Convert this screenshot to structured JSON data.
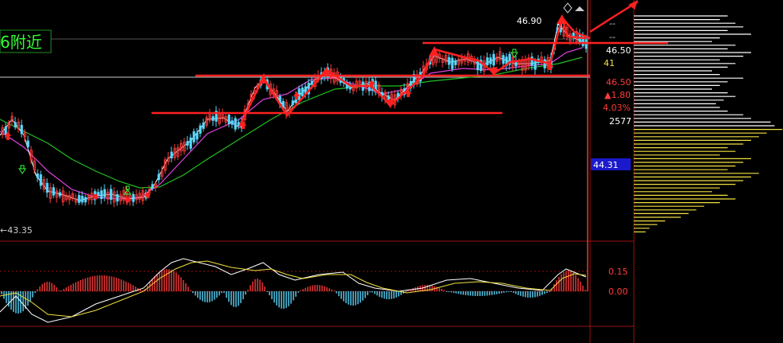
{
  "banner": {
    "text": "6附近",
    "color": "#33ff33"
  },
  "price_axis": {
    "high": "46.90",
    "dash1": "--",
    "dash2": "--",
    "current": "46.50",
    "volume_small": "41",
    "last": "46.50",
    "change": "▲1.80",
    "change_pct": "4.03%",
    "volume": "2577",
    "cursor_price": "44.31",
    "low_marker": "←43.35"
  },
  "macd_axis": {
    "upper": "0.15",
    "zero": "0.00"
  },
  "colors": {
    "up": "#ff3b3b",
    "down": "#5ad8ff",
    "ma_short": "#ffffff",
    "ma_mid": "#e040e0",
    "ma_long": "#20c020",
    "annotation": "#ff2020",
    "grid": "#9a1010",
    "volume_profile_top": "#ffffff",
    "volume_profile_bottom": "#f0e040",
    "cursor_box": "#1a1acc"
  },
  "chart_data": {
    "type": "candlestick",
    "price_min": 43.35,
    "price_max": 46.9,
    "macd_ticks": [
      0.15,
      0.0
    ],
    "support_resistance_levels": [
      "horizontal lines drawn at several price levels"
    ],
    "indicators": [
      "MA short",
      "MA mid",
      "MA long",
      "MACD"
    ]
  }
}
